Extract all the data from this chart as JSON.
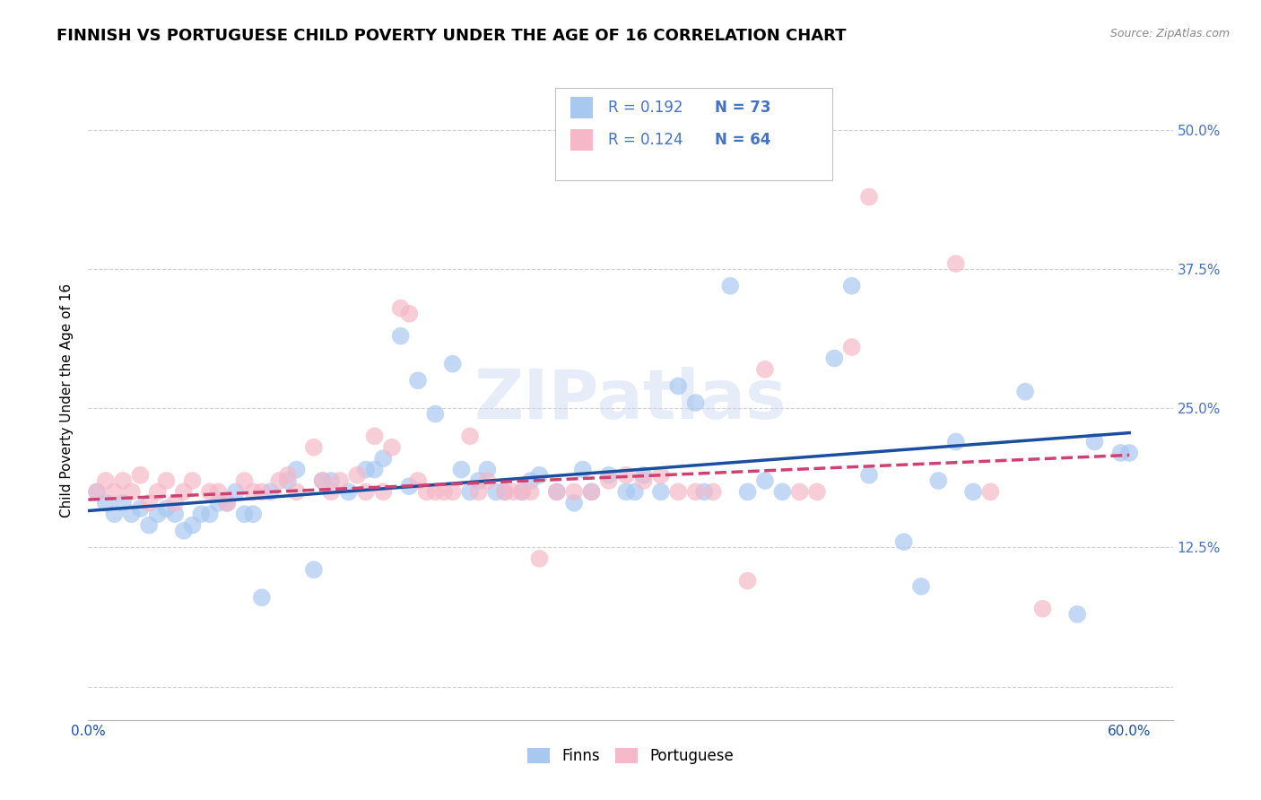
{
  "title": "FINNISH VS PORTUGUESE CHILD POVERTY UNDER THE AGE OF 16 CORRELATION CHART",
  "source": "Source: ZipAtlas.com",
  "ylabel": "Child Poverty Under the Age of 16",
  "xlim": [
    0.0,
    0.625
  ],
  "ylim": [
    -0.03,
    0.545
  ],
  "yticks_right": [
    0.0,
    0.125,
    0.25,
    0.375,
    0.5
  ],
  "ytick_labels_right": [
    "",
    "12.5%",
    "25.0%",
    "37.5%",
    "50.0%"
  ],
  "finn_color": "#a8c8f0",
  "port_color": "#f5b8c8",
  "finn_line_color": "#1a4fa0",
  "port_line_color": "#d04070",
  "legend_R_finn": "R = 0.192",
  "legend_N_finn": "N = 73",
  "legend_R_port": "R = 0.124",
  "legend_N_port": "N = 64",
  "legend_label_finn": "Finns",
  "legend_label_port": "Portuguese",
  "watermark": "ZIPatlas",
  "title_fontsize": 13,
  "label_fontsize": 11,
  "tick_fontsize": 11,
  "finns_x": [
    0.005,
    0.01,
    0.015,
    0.02,
    0.025,
    0.03,
    0.035,
    0.04,
    0.045,
    0.05,
    0.055,
    0.06,
    0.065,
    0.07,
    0.075,
    0.08,
    0.085,
    0.09,
    0.095,
    0.1,
    0.105,
    0.115,
    0.12,
    0.13,
    0.135,
    0.14,
    0.15,
    0.16,
    0.165,
    0.17,
    0.18,
    0.185,
    0.19,
    0.2,
    0.21,
    0.215,
    0.22,
    0.225,
    0.23,
    0.235,
    0.24,
    0.25,
    0.255,
    0.26,
    0.27,
    0.28,
    0.285,
    0.29,
    0.3,
    0.31,
    0.315,
    0.32,
    0.33,
    0.34,
    0.35,
    0.355,
    0.37,
    0.38,
    0.39,
    0.4,
    0.43,
    0.44,
    0.45,
    0.47,
    0.48,
    0.49,
    0.5,
    0.51,
    0.54,
    0.57,
    0.58,
    0.595,
    0.6
  ],
  "finns_y": [
    0.175,
    0.165,
    0.155,
    0.165,
    0.155,
    0.16,
    0.145,
    0.155,
    0.16,
    0.155,
    0.14,
    0.145,
    0.155,
    0.155,
    0.165,
    0.165,
    0.175,
    0.155,
    0.155,
    0.08,
    0.175,
    0.185,
    0.195,
    0.105,
    0.185,
    0.185,
    0.175,
    0.195,
    0.195,
    0.205,
    0.315,
    0.18,
    0.275,
    0.245,
    0.29,
    0.195,
    0.175,
    0.185,
    0.195,
    0.175,
    0.175,
    0.175,
    0.185,
    0.19,
    0.175,
    0.165,
    0.195,
    0.175,
    0.19,
    0.175,
    0.175,
    0.19,
    0.175,
    0.27,
    0.255,
    0.175,
    0.36,
    0.175,
    0.185,
    0.175,
    0.295,
    0.36,
    0.19,
    0.13,
    0.09,
    0.185,
    0.22,
    0.175,
    0.265,
    0.065,
    0.22,
    0.21,
    0.21
  ],
  "port_x": [
    0.005,
    0.01,
    0.015,
    0.02,
    0.025,
    0.03,
    0.035,
    0.04,
    0.045,
    0.05,
    0.055,
    0.06,
    0.07,
    0.075,
    0.08,
    0.09,
    0.095,
    0.1,
    0.11,
    0.115,
    0.12,
    0.13,
    0.135,
    0.14,
    0.145,
    0.155,
    0.16,
    0.165,
    0.17,
    0.175,
    0.18,
    0.185,
    0.19,
    0.195,
    0.2,
    0.205,
    0.21,
    0.22,
    0.225,
    0.23,
    0.24,
    0.245,
    0.25,
    0.255,
    0.26,
    0.27,
    0.28,
    0.29,
    0.3,
    0.31,
    0.32,
    0.33,
    0.34,
    0.35,
    0.36,
    0.38,
    0.39,
    0.41,
    0.42,
    0.44,
    0.45,
    0.5,
    0.52,
    0.55
  ],
  "port_y": [
    0.175,
    0.185,
    0.175,
    0.185,
    0.175,
    0.19,
    0.165,
    0.175,
    0.185,
    0.165,
    0.175,
    0.185,
    0.175,
    0.175,
    0.165,
    0.185,
    0.175,
    0.175,
    0.185,
    0.19,
    0.175,
    0.215,
    0.185,
    0.175,
    0.185,
    0.19,
    0.175,
    0.225,
    0.175,
    0.215,
    0.34,
    0.335,
    0.185,
    0.175,
    0.175,
    0.175,
    0.175,
    0.225,
    0.175,
    0.185,
    0.175,
    0.175,
    0.175,
    0.175,
    0.115,
    0.175,
    0.175,
    0.175,
    0.185,
    0.19,
    0.185,
    0.19,
    0.175,
    0.175,
    0.175,
    0.095,
    0.285,
    0.175,
    0.175,
    0.305,
    0.44,
    0.38,
    0.175,
    0.07
  ],
  "grid_color": "#d0d0d0",
  "background_color": "#ffffff",
  "finn_trend_x": [
    0.0,
    0.6
  ],
  "finn_trend_y": [
    0.158,
    0.228
  ],
  "port_trend_x": [
    0.0,
    0.6
  ],
  "port_trend_y": [
    0.168,
    0.208
  ]
}
